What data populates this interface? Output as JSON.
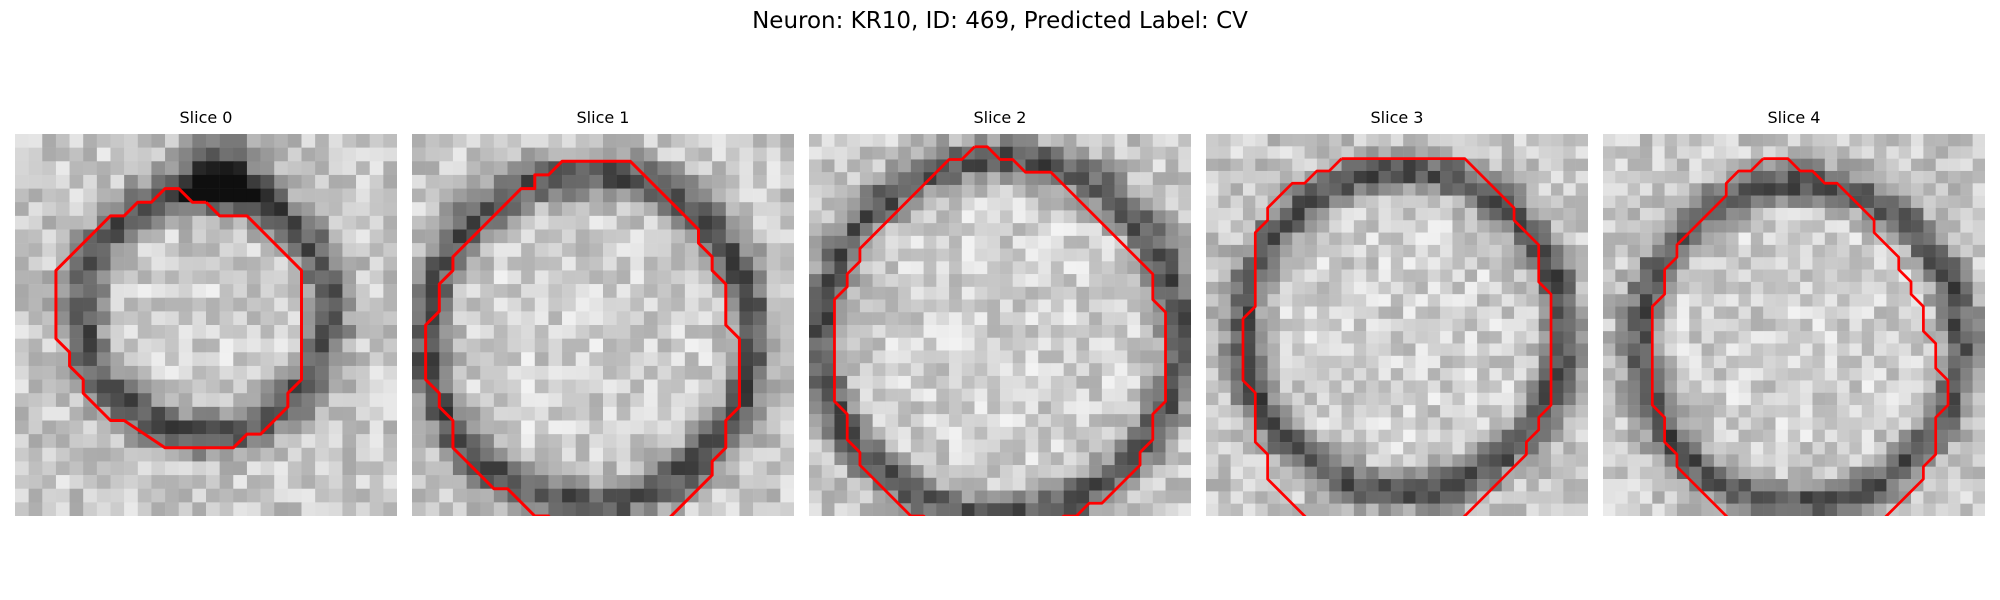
{
  "figure": {
    "title": "Neuron: KR10, ID: 469, Predicted Label: CV"
  },
  "panels": [
    {
      "title": "Slice 0",
      "contour": [
        [
          14,
          5
        ],
        [
          15,
          6
        ],
        [
          17,
          6
        ],
        [
          21,
          10
        ],
        [
          21,
          18
        ],
        [
          20,
          19
        ],
        [
          20,
          20
        ],
        [
          18,
          22
        ],
        [
          17,
          22
        ],
        [
          16,
          23
        ],
        [
          11,
          23
        ],
        [
          8,
          21
        ],
        [
          7,
          21
        ],
        [
          5,
          19
        ],
        [
          5,
          18
        ],
        [
          4,
          17
        ],
        [
          4,
          16
        ],
        [
          3,
          15
        ],
        [
          3,
          10
        ],
        [
          7,
          6
        ],
        [
          8,
          6
        ],
        [
          9,
          5
        ],
        [
          10,
          5
        ],
        [
          11,
          4
        ],
        [
          12,
          4
        ],
        [
          13,
          5
        ],
        [
          14,
          5
        ]
      ]
    },
    {
      "title": "Slice 1",
      "contour": [
        [
          14,
          2
        ],
        [
          16,
          2
        ],
        [
          20,
          6
        ],
        [
          21,
          7
        ],
        [
          21,
          8
        ],
        [
          22,
          9
        ],
        [
          22,
          10
        ],
        [
          23,
          11
        ],
        [
          23,
          14
        ],
        [
          24,
          15
        ],
        [
          24,
          20
        ],
        [
          23,
          21
        ],
        [
          23,
          23
        ],
        [
          22,
          24
        ],
        [
          22,
          25
        ],
        [
          21,
          26
        ],
        [
          20,
          27
        ],
        [
          19,
          28
        ],
        [
          18,
          29
        ],
        [
          16,
          29
        ],
        [
          15,
          30
        ],
        [
          14,
          30
        ],
        [
          13,
          29
        ],
        [
          11,
          29
        ],
        [
          10,
          28
        ],
        [
          9,
          28
        ],
        [
          7,
          26
        ],
        [
          6,
          26
        ],
        [
          5,
          25
        ],
        [
          3,
          23
        ],
        [
          3,
          21
        ],
        [
          2,
          20
        ],
        [
          2,
          19
        ],
        [
          1,
          18
        ],
        [
          1,
          14
        ],
        [
          2,
          13
        ],
        [
          2,
          11
        ],
        [
          3,
          10
        ],
        [
          3,
          9
        ],
        [
          8,
          4
        ],
        [
          9,
          4
        ],
        [
          9,
          3
        ],
        [
          10,
          3
        ],
        [
          11,
          2
        ],
        [
          14,
          2
        ]
      ]
    },
    {
      "title": "Slice 2",
      "contour": [
        [
          13,
          1
        ],
        [
          14,
          1
        ],
        [
          15,
          2
        ],
        [
          16,
          2
        ],
        [
          17,
          3
        ],
        [
          19,
          3
        ],
        [
          20,
          4
        ],
        [
          22,
          6
        ],
        [
          23,
          7
        ],
        [
          24,
          8
        ],
        [
          25,
          9
        ],
        [
          26,
          10
        ],
        [
          27,
          11
        ],
        [
          27,
          13
        ],
        [
          28,
          14
        ],
        [
          28,
          21
        ],
        [
          27,
          22
        ],
        [
          27,
          24
        ],
        [
          26,
          25
        ],
        [
          26,
          26
        ],
        [
          24,
          28
        ],
        [
          23,
          29
        ],
        [
          22,
          29
        ],
        [
          21,
          30
        ],
        [
          20,
          30
        ],
        [
          19,
          31
        ],
        [
          18,
          31
        ],
        [
          17,
          32
        ],
        [
          12,
          32
        ],
        [
          11,
          31
        ],
        [
          10,
          31
        ],
        [
          9,
          30
        ],
        [
          8,
          30
        ],
        [
          6,
          28
        ],
        [
          5,
          27
        ],
        [
          4,
          26
        ],
        [
          4,
          25
        ],
        [
          3,
          24
        ],
        [
          3,
          22
        ],
        [
          2,
          21
        ],
        [
          2,
          13
        ],
        [
          3,
          12
        ],
        [
          3,
          11
        ],
        [
          4,
          10
        ],
        [
          4,
          9
        ],
        [
          5,
          8
        ],
        [
          6,
          7
        ],
        [
          7,
          6
        ],
        [
          8,
          5
        ],
        [
          9,
          4
        ],
        [
          10,
          3
        ],
        [
          11,
          2
        ],
        [
          12,
          2
        ],
        [
          13,
          1
        ]
      ]
    },
    {
      "title": "Slice 3",
      "contour": [
        [
          11,
          2
        ],
        [
          21,
          2
        ],
        [
          25,
          6
        ],
        [
          25,
          7
        ],
        [
          26,
          8
        ],
        [
          27,
          9
        ],
        [
          27,
          12
        ],
        [
          28,
          13
        ],
        [
          28,
          22
        ],
        [
          27,
          23
        ],
        [
          27,
          24
        ],
        [
          26,
          25
        ],
        [
          26,
          26
        ],
        [
          25,
          27
        ],
        [
          24,
          28
        ],
        [
          23,
          29
        ],
        [
          22,
          30
        ],
        [
          21,
          31
        ],
        [
          20,
          32
        ],
        [
          19,
          33
        ],
        [
          18,
          33
        ],
        [
          17,
          34
        ]
      ]
    },
    {
      "title": "Slice 3",
      "contour": [
        [
          11,
          34
        ],
        [
          10,
          33
        ],
        [
          9,
          32
        ],
        [
          8,
          31
        ],
        [
          7,
          30
        ],
        [
          6,
          29
        ],
        [
          5,
          28
        ],
        [
          5,
          26
        ],
        [
          4,
          25
        ],
        [
          4,
          21
        ],
        [
          3,
          20
        ],
        [
          3,
          15
        ],
        [
          4,
          14
        ],
        [
          4,
          8
        ],
        [
          5,
          7
        ],
        [
          5,
          6
        ],
        [
          6,
          5
        ],
        [
          7,
          4
        ],
        [
          8,
          4
        ],
        [
          9,
          3
        ],
        [
          10,
          3
        ],
        [
          11,
          2
        ]
      ]
    },
    {
      "title": "Slice 4",
      "contour": [
        [
          13,
          2
        ],
        [
          15,
          2
        ],
        [
          16,
          3
        ],
        [
          17,
          3
        ],
        [
          18,
          4
        ],
        [
          19,
          4
        ],
        [
          20,
          5
        ],
        [
          21,
          6
        ],
        [
          22,
          7
        ],
        [
          22,
          8
        ],
        [
          23,
          9
        ],
        [
          24,
          10
        ],
        [
          24,
          11
        ],
        [
          25,
          12
        ],
        [
          25,
          13
        ],
        [
          26,
          14
        ],
        [
          26,
          16
        ],
        [
          27,
          17
        ],
        [
          27,
          19
        ],
        [
          28,
          20
        ],
        [
          28,
          22
        ],
        [
          27,
          23
        ],
        [
          27,
          26
        ],
        [
          26,
          27
        ],
        [
          26,
          28
        ],
        [
          25,
          29
        ],
        [
          24,
          30
        ],
        [
          23,
          31
        ],
        [
          22,
          32
        ],
        [
          21,
          32
        ],
        [
          20,
          33
        ],
        [
          19,
          33
        ],
        [
          18,
          34
        ],
        [
          15,
          34
        ],
        [
          14,
          33
        ],
        [
          12,
          33
        ],
        [
          11,
          32
        ],
        [
          10,
          31
        ],
        [
          9,
          30
        ],
        [
          8,
          29
        ],
        [
          7,
          28
        ],
        [
          6,
          27
        ],
        [
          6,
          26
        ],
        [
          5,
          25
        ],
        [
          5,
          23
        ],
        [
          4,
          22
        ],
        [
          4,
          14
        ],
        [
          5,
          13
        ],
        [
          5,
          11
        ],
        [
          6,
          10
        ],
        [
          6,
          9
        ],
        [
          7,
          8
        ],
        [
          8,
          7
        ],
        [
          9,
          6
        ],
        [
          10,
          5
        ],
        [
          10,
          4
        ],
        [
          11,
          3
        ],
        [
          12,
          3
        ],
        [
          13,
          2
        ]
      ]
    }
  ]
}
